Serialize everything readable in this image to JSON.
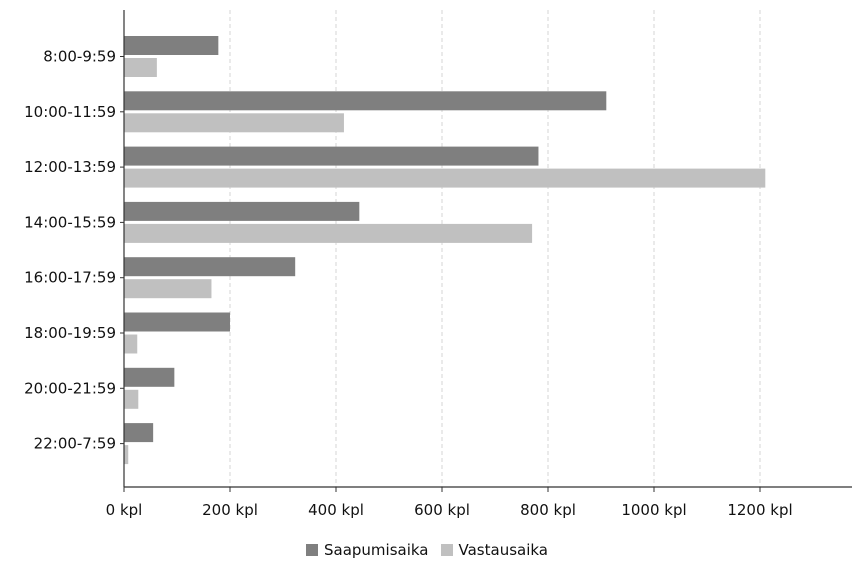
{
  "chart_data": {
    "type": "bar",
    "orientation": "horizontal",
    "categories": [
      "8:00-9:59",
      "10:00-11:59",
      "12:00-13:59",
      "14:00-15:59",
      "16:00-17:59",
      "18:00-19:59",
      "20:00-21:59",
      "22:00-7:59"
    ],
    "series": [
      {
        "name": "Saapumisaika",
        "color": "#7f7f7f",
        "values": [
          178,
          910,
          782,
          444,
          323,
          200,
          95,
          55
        ]
      },
      {
        "name": "Vastausaika",
        "color": "#c0c0c0",
        "values": [
          62,
          415,
          1210,
          770,
          165,
          25,
          27,
          8
        ]
      }
    ],
    "x_ticks": [
      0,
      200,
      400,
      600,
      800,
      1000,
      1200
    ],
    "x_tick_labels": [
      "0 kpl",
      "200 kpl",
      "400 kpl",
      "600 kpl",
      "800 kpl",
      "1000 kpl",
      "1200 kpl"
    ],
    "xlim": [
      0,
      1380
    ],
    "grid": "vertical dashed",
    "legend_position": "bottom-center",
    "title": "",
    "xlabel": "",
    "ylabel": ""
  }
}
